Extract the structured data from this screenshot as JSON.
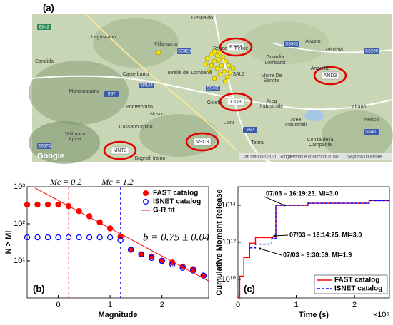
{
  "map": {
    "panel_label": "(a)",
    "stations": [
      "RSF3",
      "AND3",
      "LIO3",
      "NSC3",
      "MNT3"
    ],
    "places": [
      "Gesualdo",
      "Lagoscano",
      "Villamaina",
      "Rocca",
      "Felice",
      "Torella dei Lombardi",
      "Guardia",
      "Lombardi",
      "Alvano",
      "Pisciolo",
      "Andretta",
      "Morra De",
      "Sanctis",
      "Castelfranci",
      "Montemarano",
      "Ponteromito",
      "Nusco",
      "Goleto",
      "Lioni",
      "Area",
      "Industriale",
      "Aree",
      "Industriali",
      "Volturara",
      "Irpina",
      "Cassano Irpino",
      "Bagnoli Irpino",
      "Teora",
      "Conza della",
      "Campania",
      "Cairano",
      "Nerico",
      "Candida",
      "SAL3"
    ],
    "roads": [
      "E842",
      "SS428",
      "SS303",
      "SS299",
      "SS7",
      "SP164",
      "SS400",
      "SS574",
      "SS401",
      "SS7"
    ],
    "logo": "Google",
    "footer": [
      "Dati mappa ©2020 Google",
      "Termini e condizioni d'uso",
      "Segnala un errore"
    ]
  },
  "chart_data": [
    {
      "type": "scatter",
      "panel_label": "(b)",
      "x_label": "Magnitude",
      "y_label": "N > Ml",
      "xlim": [
        -0.6,
        2.9
      ],
      "xticks": [
        0,
        1,
        2
      ],
      "ylim": [
        1,
        1000
      ],
      "y_log": true,
      "yticks": [
        {
          "value": 10,
          "label": "10¹"
        },
        {
          "value": 100,
          "label": "10²"
        },
        {
          "value": 1000,
          "label": "10³"
        }
      ],
      "legend": "upper right",
      "series": [
        {
          "name": "FAST catalog",
          "color": "#ff0000",
          "marker": "filled",
          "x": [
            -0.6,
            -0.4,
            -0.2,
            0,
            0.2,
            0.4,
            0.6,
            0.8,
            1.0,
            1.2,
            1.4,
            1.6,
            1.8,
            2.0,
            2.2,
            2.4,
            2.6,
            2.8
          ],
          "values": [
            330,
            330,
            330,
            330,
            300,
            220,
            160,
            110,
            75,
            45,
            20,
            15,
            13,
            10,
            9,
            7,
            6,
            4
          ]
        },
        {
          "name": "ISNET catalog",
          "color": "#0000ff",
          "marker": "open",
          "x": [
            -0.6,
            -0.4,
            -0.2,
            0,
            0.2,
            0.4,
            0.6,
            0.8,
            1.0,
            1.2,
            1.4,
            1.6,
            1.8,
            2.0,
            2.2,
            2.4,
            2.6,
            2.8
          ],
          "values": [
            43,
            43,
            43,
            43,
            43,
            43,
            43,
            43,
            43,
            36,
            20,
            15,
            12,
            10,
            8,
            6.5,
            5.5,
            4
          ]
        },
        {
          "name": "G-R fit",
          "color": "#ff0000",
          "marker": "line",
          "x": [
            -0.45,
            2.9
          ],
          "values": [
            928,
            2.85
          ]
        }
      ],
      "vlines": [
        {
          "label": "Mc = 0.2",
          "value": 0.2,
          "color": "#ff0000"
        },
        {
          "label": "Mc = 1.2",
          "value": 1.2,
          "color": "#0000ff"
        }
      ],
      "annotation": "b = 0.75 ± 0.04"
    },
    {
      "type": "line",
      "panel_label": "(c)",
      "x_label": "Time (s)",
      "y_label": "Cumulative Moment Release",
      "xlim": [
        0,
        260000
      ],
      "xticks": [
        0,
        {
          "value": 100000,
          "label": "1"
        },
        {
          "value": 200000,
          "label": "2"
        }
      ],
      "x_multiplier": "×10⁵",
      "ylim": [
        1000000000,
        1000000000000000
      ],
      "y_log": true,
      "yticks": [
        {
          "value": 10000000000,
          "label": "10¹⁰"
        },
        {
          "value": 1000000000000,
          "label": "10¹²"
        },
        {
          "value": 100000000000000,
          "label": "10¹⁴"
        }
      ],
      "legend": "lower right",
      "series": [
        {
          "name": "FAST catalog",
          "color": "#ff0000",
          "dash": false,
          "x": [
            0,
            3000,
            3000,
            10000,
            10000,
            20000,
            20000,
            30000,
            30000,
            60000,
            60000,
            65000,
            65000,
            120000,
            120000,
            225000,
            225000,
            260000
          ],
          "values": [
            1000000000,
            1000000000,
            15000000000,
            15000000000,
            150000000000,
            150000000000,
            900000000000,
            900000000000,
            1800000000000,
            1800000000000,
            2000000000000,
            2000000000000,
            100000000000000,
            100000000000000,
            130000000000000,
            130000000000000,
            180000000000000,
            180000000000000
          ]
        },
        {
          "name": "ISNET catalog",
          "color": "#0000ff",
          "dash": true,
          "x": [
            20000,
            30000,
            30000,
            58000,
            58000,
            65000,
            65000,
            120000,
            120000,
            225000,
            225000,
            260000
          ],
          "values": [
            500000000000,
            500000000000,
            800000000000,
            800000000000,
            1600000000000,
            1600000000000,
            100000000000000,
            100000000000000,
            130000000000000,
            130000000000000,
            180000000000000,
            180000000000000
          ]
        }
      ],
      "annotations": [
        "07/03 – 16:19:23. Ml=3.0",
        "07/03 – 16:14:25. Ml=3.0",
        "07/03 – 9:30:59. Ml=1.9"
      ]
    }
  ]
}
